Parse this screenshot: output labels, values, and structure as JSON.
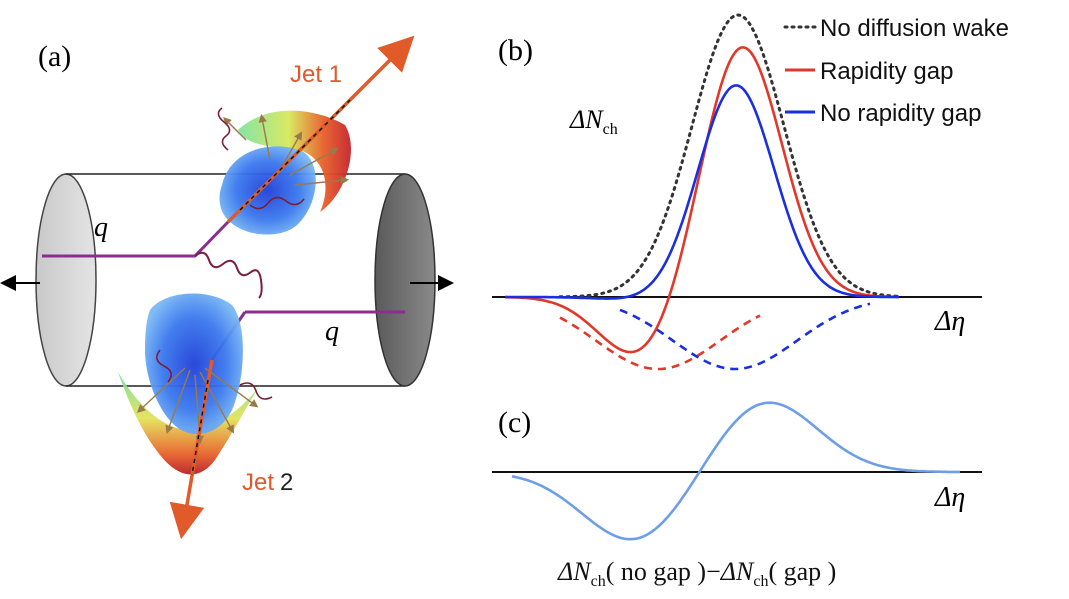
{
  "panel_a": {
    "label": "(a)",
    "jet1_label": "Jet 1",
    "jet2_word": "Jet",
    "jet2_num": "2",
    "quark_label": "q",
    "colors": {
      "jet": "#e05a2a",
      "quark_line": "#8b2d8f",
      "gluon": "#7a1e3a",
      "medium_blue": "#2f64e6"
    }
  },
  "panel_b": {
    "label": "(b)",
    "ylabel": "ΔN",
    "ylabel_sub": "ch",
    "xlabel": "Δη",
    "legend": [
      {
        "label": "No diffusion wake",
        "color": "#333333",
        "style": "dotted"
      },
      {
        "label": "Rapidity gap",
        "color": "#e0382a",
        "style": "solid"
      },
      {
        "label": "No rapidity gap",
        "color": "#1a2fe0",
        "style": "solid"
      }
    ]
  },
  "panel_c": {
    "label": "(c)",
    "xlabel": "Δη",
    "caption_parts": {
      "d1": "ΔN",
      "s1": "ch",
      "m1": "( no gap )−",
      "d2": "ΔN",
      "s2": "ch",
      "m2": "( gap )"
    },
    "color": "#6f9ee8"
  }
}
